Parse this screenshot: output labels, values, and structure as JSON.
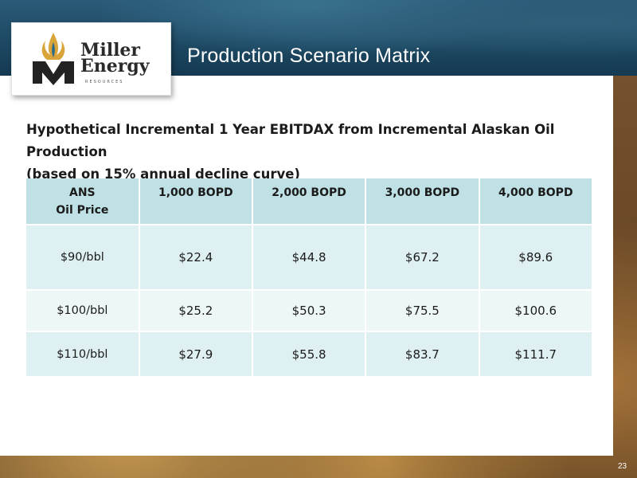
{
  "header": {
    "title": "Production Scenario Matrix"
  },
  "logo": {
    "word1": "Miller",
    "word2": "Energy",
    "sub": "RESOURCES"
  },
  "subtitle": "Hypothetical Incremental 1 Year EBITDAX from Incremental Alaskan Oil Production\n (based on 15% annual decline curve)",
  "table": {
    "headers": [
      "ANS\nOil Price",
      "1,000 BOPD",
      "2,000 BOPD",
      "3,000 BOPD",
      "4,000 BOPD"
    ],
    "rows": [
      [
        "$90/bbl",
        "$22.4",
        "$44.8",
        "$67.2",
        "$89.6"
      ],
      [
        "$100/bbl",
        "$25.2",
        "$50.3",
        "$75.5",
        "$100.6"
      ],
      [
        "$110/bbl",
        "$27.9",
        "$55.8",
        "$83.7",
        "$111.7"
      ]
    ]
  },
  "page_number": "23",
  "colors": {
    "header_blue": "#1d4862",
    "table_header": "#bfe0e4",
    "table_row": "#dff0f2",
    "table_row_alt": "#eef7f8"
  }
}
